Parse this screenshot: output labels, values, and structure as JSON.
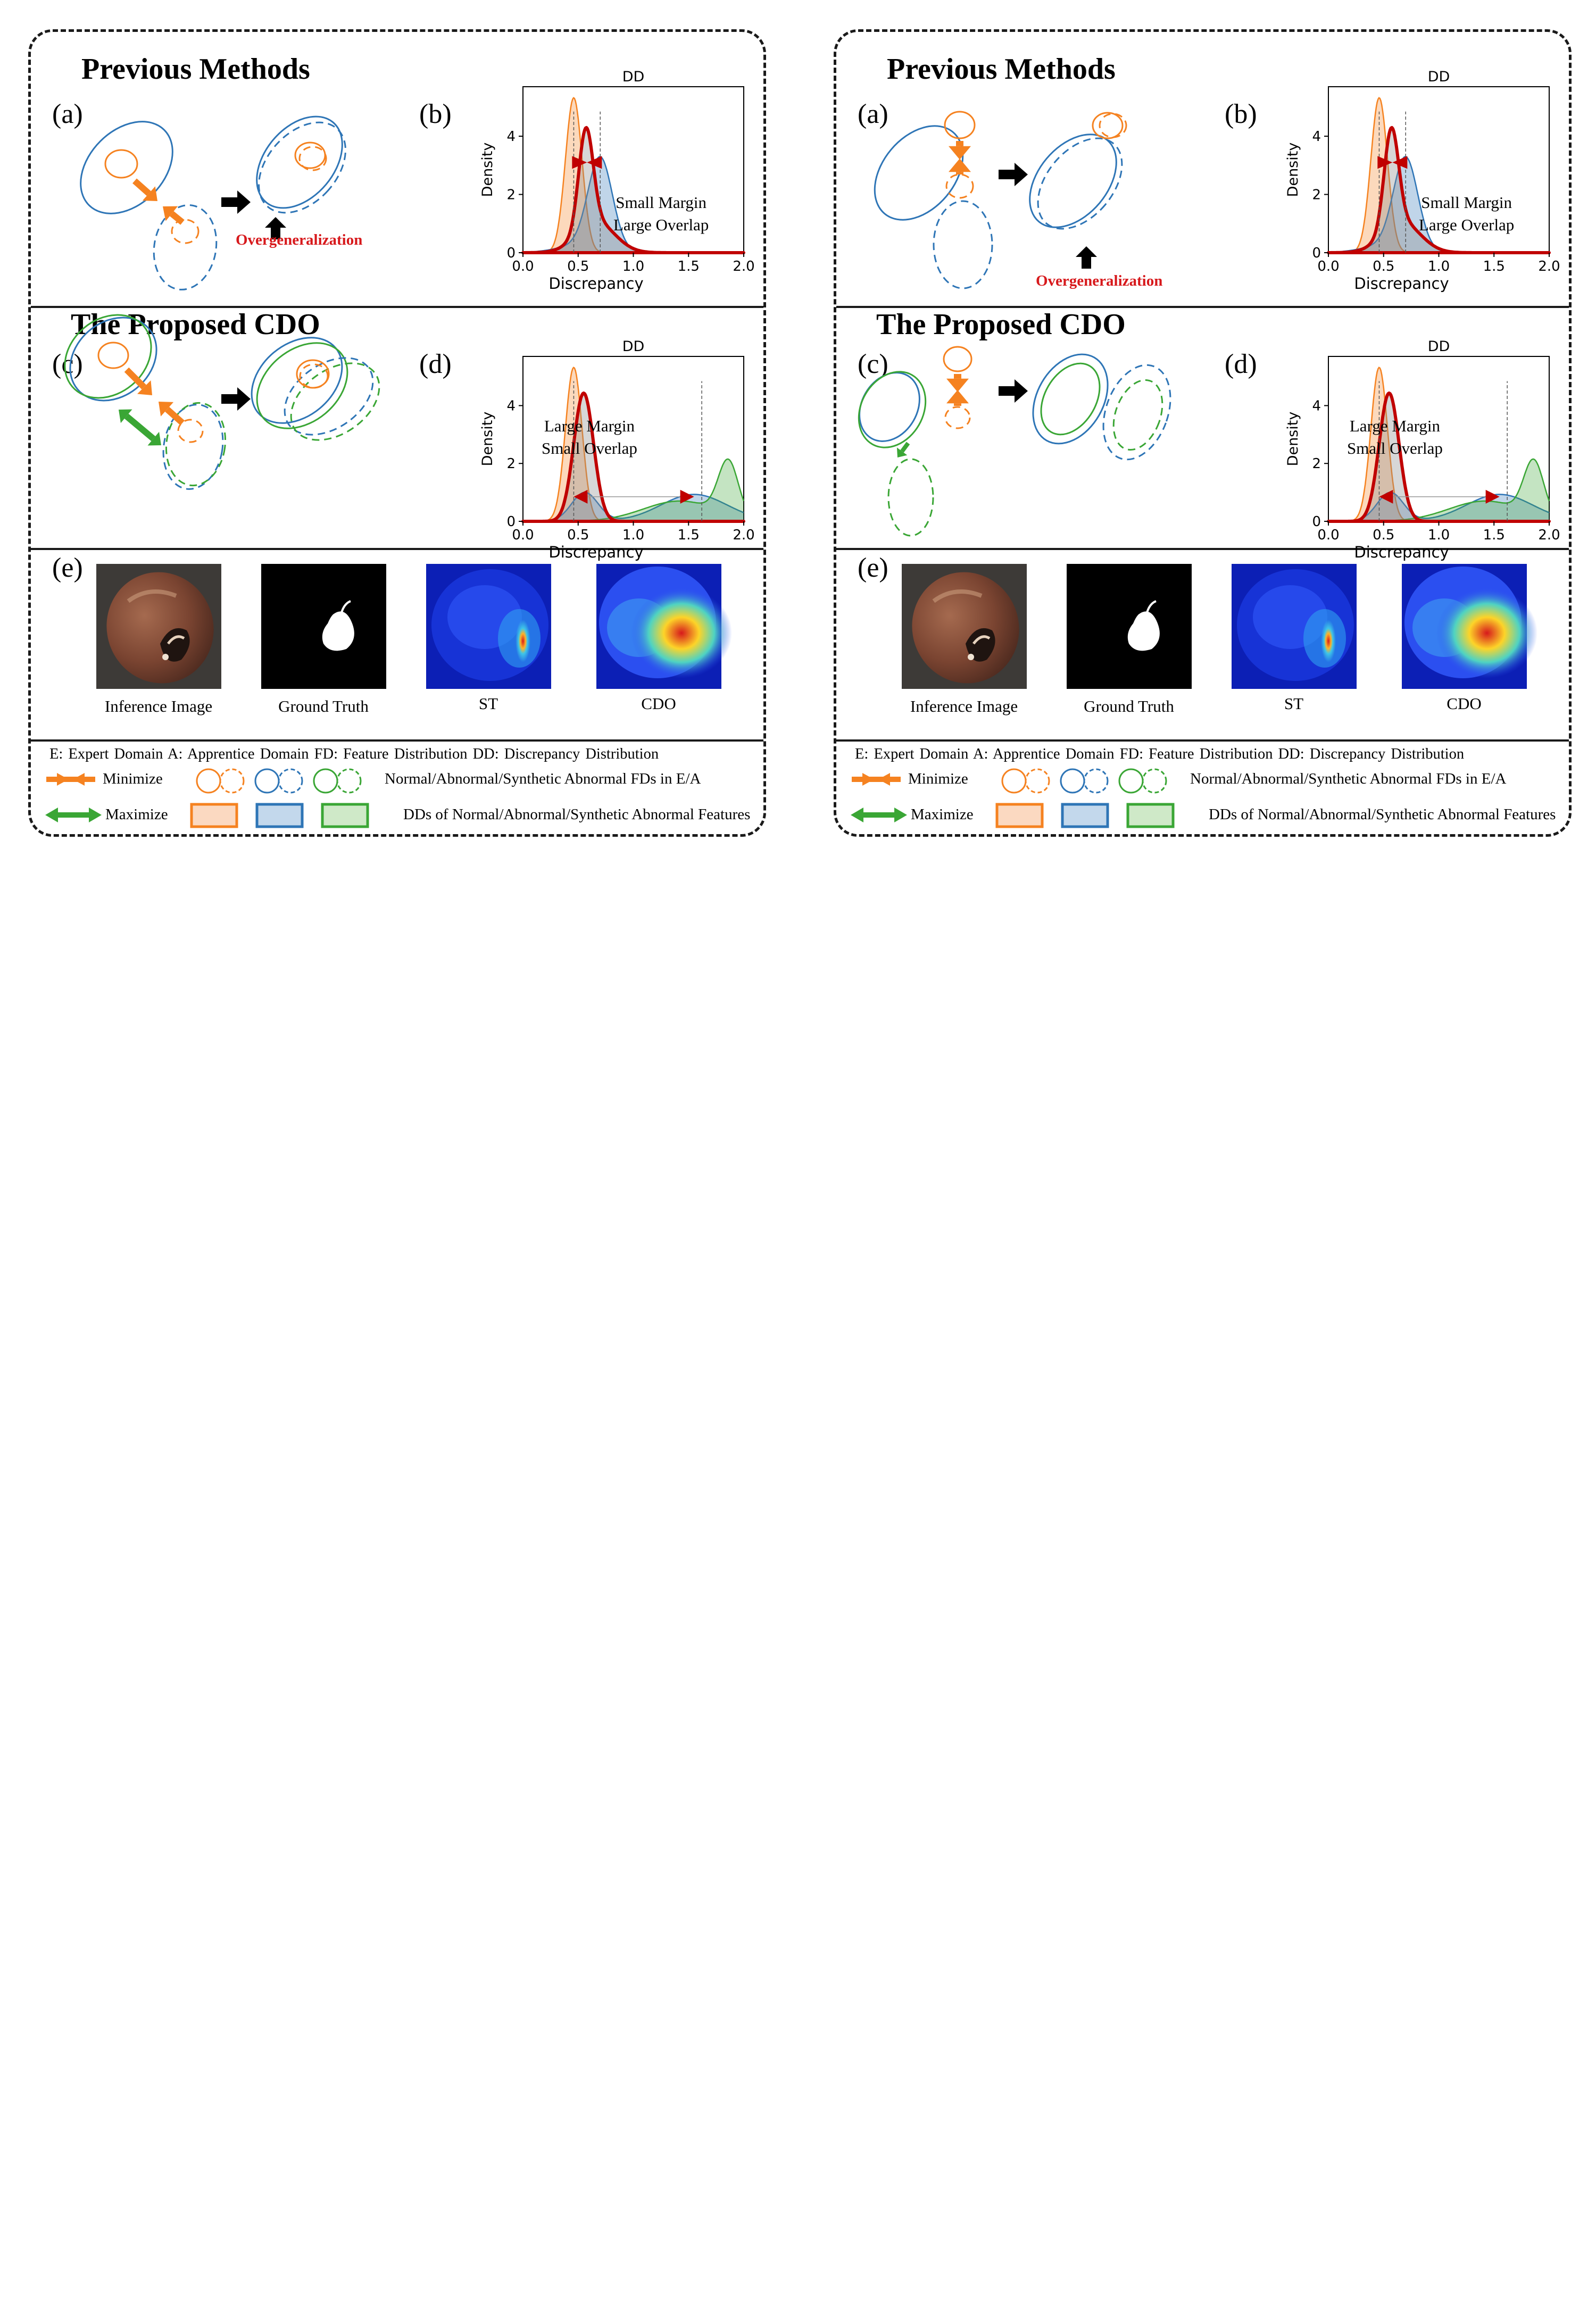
{
  "panels": [
    {
      "prev_title": "Previous Methods",
      "cdo_title": "The Proposed CDO",
      "labels": {
        "a": "(a)",
        "b": "(b)",
        "c": "(c)",
        "d": "(d)",
        "e": "(e)"
      },
      "overgeneralization": "Overgeneralization",
      "chart_b_annotation": [
        "Small Margin",
        "Large Overlap"
      ],
      "chart_d_annotation": [
        "Large Margin",
        "Small Overlap"
      ],
      "captions": [
        "Inference Image",
        "Ground Truth",
        "ST",
        "CDO"
      ],
      "legend": {
        "definitions": "E: Expert Domain  A: Apprentice  Domain  FD: Feature Distribution  DD: Discrepancy  Distribution",
        "minimize": "Minimize",
        "maximize": "Maximize",
        "fd_text": "Normal/Abnormal/Synthetic  Abnormal  FDs in E/A",
        "dd_text": "DDs of Normal/Abnormal/Synthetic  Abnormal  Features"
      }
    },
    {
      "prev_title": "Previous Methods",
      "cdo_title": "The Proposed CDO",
      "labels": {
        "a": "(a)",
        "b": "(b)",
        "c": "(c)",
        "d": "(d)",
        "e": "(e)"
      },
      "overgeneralization": "Overgeneralization",
      "chart_b_annotation": [
        "Small Margin",
        "Large Overlap"
      ],
      "chart_d_annotation": [
        "Large Margin",
        "Small Overlap"
      ],
      "captions": [
        "Inference Image",
        "Ground Truth",
        "ST",
        "CDO"
      ],
      "legend": {
        "definitions": "E: Expert Domain  A: Apprentice  Domain  FD: Feature Distribution  DD: Discrepancy  Distribution",
        "minimize": "Minimize",
        "maximize": "Maximize",
        "fd_text": "Normal/Abnormal/Synthetic  Abnormal  FDs in E/A",
        "dd_text": "DDs of Normal/Abnormal/Synthetic  Abnormal  Features"
      }
    }
  ],
  "colors": {
    "normal": "#f58220",
    "abnormal": "#2e75b6",
    "synthetic": "#3aa635",
    "highlight": "#c00000",
    "overgeneralization": "#d7191c"
  },
  "icons": {
    "minimize": "converging-arrows-icon",
    "maximize": "diverging-arrows-icon",
    "transform": "right-arrow-icon"
  },
  "chart_data": [
    {
      "type": "area",
      "panel": "b",
      "title": "DD",
      "xlabel": "Discrepancy",
      "ylabel": "Density",
      "xlim": [
        0.0,
        2.0
      ],
      "ylim": [
        0,
        5.7
      ],
      "xticks": [
        "0.0",
        "0.5",
        "1.0",
        "1.5",
        "2.0"
      ],
      "yticks": [
        "0",
        "2",
        "4"
      ],
      "grid": false,
      "series": [
        {
          "color": "#f58220",
          "components": [
            {
              "w": 1.0,
              "mu": 0.46,
              "sigma": 0.075
            }
          ]
        },
        {
          "color": "#2e75b6",
          "components": [
            {
              "w": 0.85,
              "mu": 0.7,
              "sigma": 0.11
            },
            {
              "w": 0.15,
              "mu": 0.55,
              "sigma": 0.22
            }
          ]
        },
        {
          "color": "#c00000",
          "components": [
            {
              "w": 0.55,
              "mu": 0.57,
              "sigma": 0.065
            },
            {
              "w": 0.45,
              "mu": 0.66,
              "sigma": 0.17
            }
          ]
        }
      ],
      "means": [
        0.46,
        0.7
      ],
      "marker": {
        "x": 0.58,
        "y": 3.1,
        "direction": "converge"
      }
    },
    {
      "type": "area",
      "panel": "d",
      "title": "DD",
      "xlabel": "Discrepancy",
      "ylabel": "Density",
      "xlim": [
        0.0,
        2.0
      ],
      "ylim": [
        0,
        5.7
      ],
      "xticks": [
        "0.0",
        "0.5",
        "1.0",
        "1.5",
        "2.0"
      ],
      "yticks": [
        "0",
        "2",
        "4"
      ],
      "grid": false,
      "series": [
        {
          "color": "#f58220",
          "components": [
            {
              "w": 1.0,
              "mu": 0.46,
              "sigma": 0.075
            }
          ]
        },
        {
          "color": "#2e75b6",
          "components": [
            {
              "w": 0.3,
              "mu": 0.56,
              "sigma": 0.12
            },
            {
              "w": 0.7,
              "mu": 1.55,
              "sigma": 0.3
            }
          ]
        },
        {
          "color": "#3aa635",
          "components": [
            {
              "w": 0.42,
              "mu": 1.86,
              "sigma": 0.09
            },
            {
              "w": 0.58,
              "mu": 1.42,
              "sigma": 0.33
            }
          ]
        },
        {
          "color": "#c00000",
          "components": [
            {
              "w": 1.0,
              "mu": 0.55,
              "sigma": 0.09
            }
          ]
        }
      ],
      "means": [
        0.46,
        1.62
      ],
      "marker": {
        "x0": 0.46,
        "x1": 1.55,
        "y": 0.85,
        "direction": "diverge"
      }
    }
  ]
}
